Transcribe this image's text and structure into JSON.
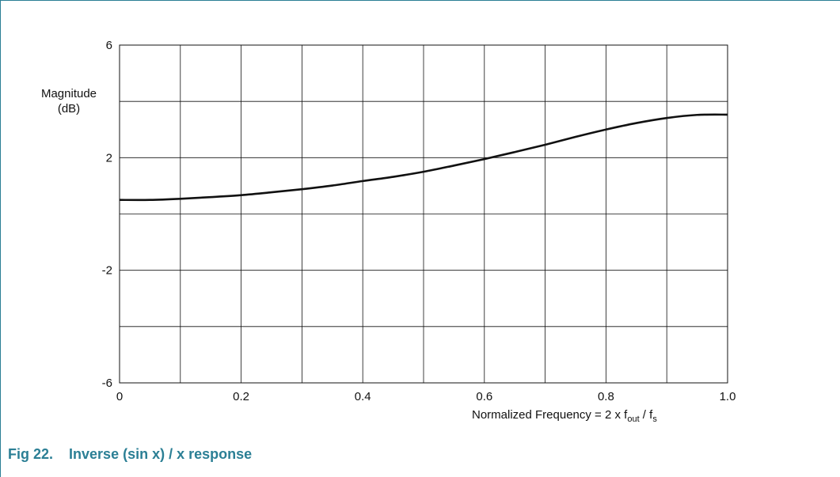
{
  "chart_data": {
    "type": "line",
    "ylabel_line1": "Magnitude",
    "ylabel_line2": "(dB)",
    "xlabel_main": "Normalized Frequency = 2 x f",
    "xlabel_sub1": "out",
    "xlabel_mid": " / f",
    "xlabel_sub2": "s",
    "xlim": [
      0,
      1.0
    ],
    "ylim": [
      -6,
      6
    ],
    "x_tick_labels": [
      "0",
      "0.2",
      "0.4",
      "0.6",
      "0.8",
      "1.0"
    ],
    "x_tick_values": [
      0,
      0.2,
      0.4,
      0.6,
      0.8,
      1.0
    ],
    "y_tick_labels": [
      "6",
      "2",
      "-2",
      "-6"
    ],
    "y_tick_values": [
      6,
      2,
      -2,
      -6
    ],
    "grid": true,
    "series": [
      {
        "x": [
          0,
          0.05,
          0.1,
          0.15,
          0.2,
          0.25,
          0.3,
          0.35,
          0.4,
          0.45,
          0.5,
          0.55,
          0.6,
          0.65,
          0.7,
          0.75,
          0.8,
          0.85,
          0.9,
          0.95,
          1.0
        ],
        "y": [
          0.5,
          0.5,
          0.54,
          0.6,
          0.67,
          0.77,
          0.88,
          1.01,
          1.17,
          1.32,
          1.5,
          1.72,
          1.95,
          2.2,
          2.46,
          2.74,
          3.0,
          3.23,
          3.41,
          3.52,
          3.53
        ]
      }
    ]
  },
  "caption": {
    "fig": "Fig 22.",
    "title": "Inverse (sin x) / x response"
  }
}
